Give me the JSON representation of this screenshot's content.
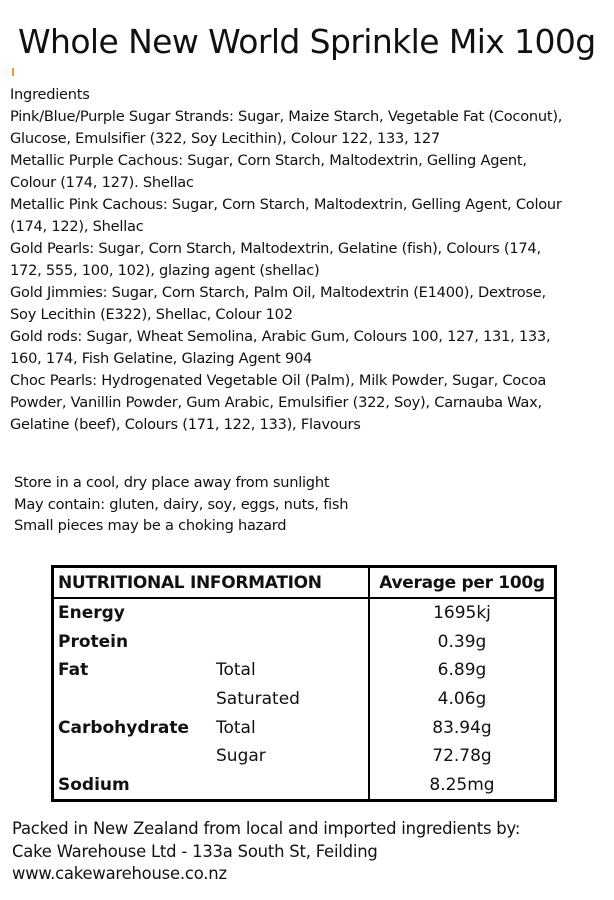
{
  "title": "Whole New World Sprinkle Mix 100g",
  "ingredients": {
    "heading": "Ingredients",
    "lines": [
      "Pink/Blue/Purple Sugar Strands: Sugar, Maize Starch, Vegetable Fat (Coconut),",
      "Glucose, Emulsifier (322, Soy Lecithin), Colour 122, 133, 127",
      "Metallic Purple Cachous: Sugar, Corn Starch, Maltodextrin, Gelling Agent,",
      "Colour (174, 127). Shellac",
      "Metallic Pink Cachous: Sugar, Corn Starch, Maltodextrin, Gelling Agent, Colour",
      "(174, 122), Shellac",
      "Gold Pearls: Sugar, Corn Starch, Maltodextrin, Gelatine (fish), Colours (174,",
      "172, 555, 100, 102), glazing agent (shellac)",
      "Gold Jimmies: Sugar, Corn Starch, Palm Oil, Maltodextrin (E1400), Dextrose,",
      "Soy Lecithin (E322), Shellac, Colour 102",
      "Gold rods: Sugar, Wheat Semolina, Arabic Gum, Colours 100, 127, 131, 133,",
      "160, 174, Fish Gelatine, Glazing Agent 904",
      "Choc Pearls: Hydrogenated Vegetable Oil (Palm), Milk Powder, Sugar, Cocoa",
      "Powder, Vanillin Powder, Gum Arabic, Emulsifier (322, Soy), Carnauba Wax,",
      "Gelatine (beef), Colours (171, 122, 133), Flavours"
    ]
  },
  "storage": [
    "Store in a cool, dry place away from sunlight",
    "May contain: gluten, dairy, soy, eggs, nuts, fish",
    "Small pieces may be a choking hazard"
  ],
  "nutrition": {
    "header": "NUTRITIONAL INFORMATION",
    "value_header": "Average per 100g",
    "rows": [
      {
        "name": "Energy",
        "sub": "",
        "value": "1695kj"
      },
      {
        "name": "Protein",
        "sub": "",
        "value": "0.39g"
      },
      {
        "name": "Fat",
        "sub": "Total",
        "value": "6.89g"
      },
      {
        "name": "",
        "sub": "Saturated",
        "value": "4.06g"
      },
      {
        "name": "Carbohydrate",
        "sub": "Total",
        "value": "83.94g"
      },
      {
        "name": "",
        "sub": "Sugar",
        "value": "72.78g"
      },
      {
        "name": "Sodium",
        "sub": "",
        "value": "8.25mg"
      }
    ]
  },
  "footer": [
    "Packed in New Zealand from local and imported ingredients by:",
    "Cake Warehouse Ltd - 133a South St, Feilding",
    "www.cakewarehouse.co.nz"
  ]
}
